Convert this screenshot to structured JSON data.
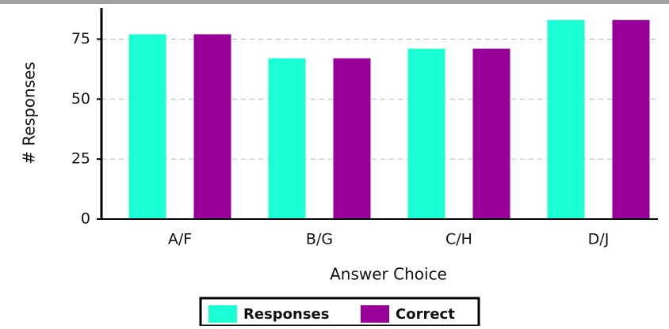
{
  "chart_data": {
    "type": "bar",
    "x_label": "Answer Choice",
    "y_label": "# Responses",
    "categories": [
      "A/F",
      "B/G",
      "C/H",
      "D/J"
    ],
    "series": [
      {
        "name": "Responses",
        "color": "#1affd5",
        "values": [
          77,
          67,
          71,
          83
        ]
      },
      {
        "name": "Correct",
        "color": "#990099",
        "values": [
          77,
          67,
          71,
          83
        ]
      }
    ],
    "ylim": [
      0,
      88
    ],
    "yticks": [
      0,
      25,
      50,
      75
    ],
    "grid": true,
    "legend": "bottom"
  }
}
